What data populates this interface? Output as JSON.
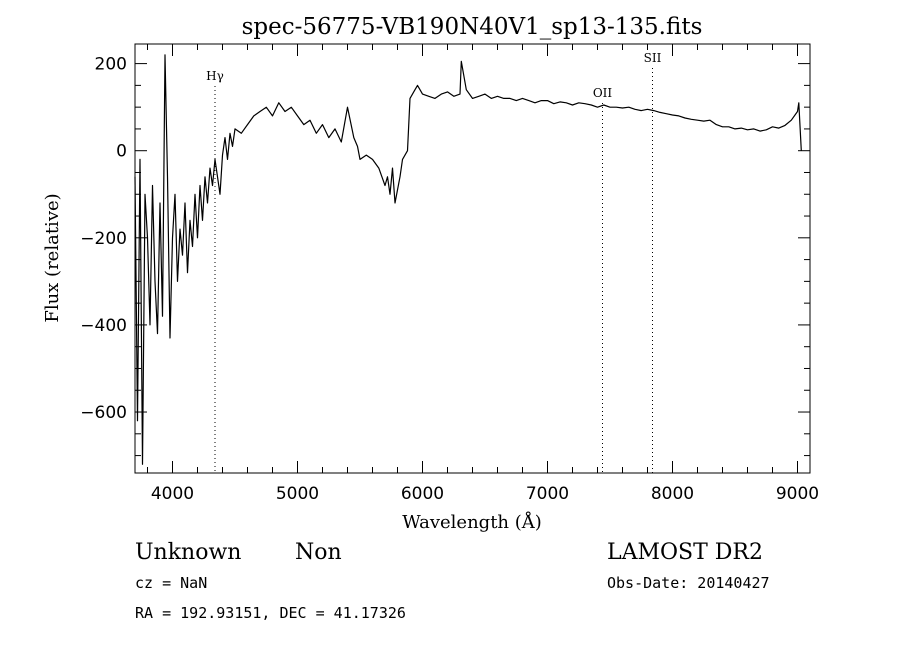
{
  "chart_data": {
    "type": "line",
    "title": "spec-56775-VB190N40V1_sp13-135.fits",
    "xlabel": "Wavelength (Å)",
    "ylabel": "Flux (relative)",
    "xlim": [
      3700,
      9100
    ],
    "ylim": [
      -740,
      245
    ],
    "x_ticks": [
      4000,
      5000,
      6000,
      7000,
      8000,
      9000
    ],
    "x_tick_labels": [
      "4000",
      "5000",
      "6000",
      "7000",
      "8000",
      "9000"
    ],
    "y_ticks": [
      200,
      0,
      -200,
      -400,
      -600
    ],
    "y_tick_labels": [
      "200",
      "0",
      "−200",
      "−400",
      "−600"
    ],
    "grid": false,
    "line_color": "#000000",
    "annotations": [
      {
        "text": "Hγ",
        "x": 4340,
        "line": true
      },
      {
        "text": "OII",
        "x": 7440,
        "line": true
      },
      {
        "text": "SII",
        "x": 7840,
        "line": true
      }
    ],
    "series": [
      {
        "x": [
          3700,
          3720,
          3740,
          3760,
          3780,
          3800,
          3820,
          3840,
          3860,
          3880,
          3900,
          3920,
          3940,
          3960,
          3980,
          4000,
          4020,
          4040,
          4060,
          4080,
          4100,
          4120,
          4140,
          4160,
          4180,
          4200,
          4220,
          4240,
          4260,
          4280,
          4300,
          4320,
          4340,
          4360,
          4380,
          4400,
          4420,
          4440,
          4460,
          4480,
          4500,
          4550,
          4600,
          4650,
          4700,
          4750,
          4800,
          4850,
          4900,
          4950,
          5000,
          5050,
          5100,
          5150,
          5200,
          5250,
          5300,
          5350,
          5400,
          5450,
          5480,
          5500,
          5550,
          5600,
          5650,
          5700,
          5720,
          5740,
          5760,
          5780,
          5800,
          5820,
          5840,
          5860,
          5880,
          5900,
          5920,
          5940,
          5960,
          5980,
          6000,
          6050,
          6100,
          6150,
          6200,
          6250,
          6300,
          6310,
          6350,
          6400,
          6450,
          6500,
          6550,
          6600,
          6650,
          6700,
          6750,
          6800,
          6850,
          6900,
          6950,
          7000,
          7050,
          7100,
          7150,
          7200,
          7250,
          7300,
          7350,
          7400,
          7450,
          7500,
          7550,
          7600,
          7650,
          7700,
          7750,
          7800,
          7850,
          7900,
          7950,
          8000,
          8050,
          8100,
          8150,
          8200,
          8250,
          8300,
          8350,
          8400,
          8450,
          8500,
          8550,
          8600,
          8650,
          8700,
          8750,
          8800,
          8850,
          8900,
          8950,
          9000,
          9010,
          9030
        ],
        "y": [
          -60,
          -620,
          -20,
          -720,
          -100,
          -200,
          -400,
          -80,
          -300,
          -420,
          -120,
          -380,
          220,
          -60,
          -430,
          -200,
          -100,
          -300,
          -180,
          -240,
          -120,
          -280,
          -160,
          -220,
          -100,
          -200,
          -80,
          -160,
          -60,
          -120,
          -40,
          -80,
          -20,
          -60,
          -100,
          -10,
          30,
          -20,
          40,
          10,
          50,
          40,
          60,
          80,
          90,
          100,
          80,
          110,
          90,
          100,
          80,
          60,
          70,
          40,
          60,
          30,
          50,
          20,
          100,
          30,
          10,
          -20,
          -10,
          -20,
          -40,
          -80,
          -60,
          -100,
          -40,
          -120,
          -90,
          -60,
          -20,
          -10,
          0,
          120,
          130,
          140,
          150,
          140,
          130,
          125,
          120,
          130,
          135,
          125,
          130,
          205,
          140,
          120,
          125,
          130,
          120,
          125,
          120,
          120,
          115,
          120,
          115,
          110,
          115,
          115,
          108,
          112,
          110,
          105,
          110,
          108,
          105,
          100,
          105,
          100,
          100,
          98,
          100,
          95,
          92,
          95,
          92,
          88,
          85,
          82,
          80,
          75,
          72,
          70,
          68,
          70,
          60,
          55,
          55,
          50,
          52,
          48,
          50,
          45,
          48,
          55,
          52,
          58,
          70,
          90,
          110,
          0
        ]
      }
    ]
  },
  "footer": {
    "object_type": "Unknown",
    "subtype": "Non",
    "survey": "LAMOST DR2",
    "cz": "cz = NaN",
    "obs_date": "Obs-Date: 20140427",
    "coords": "RA = 192.93151, DEC =  41.17326"
  }
}
